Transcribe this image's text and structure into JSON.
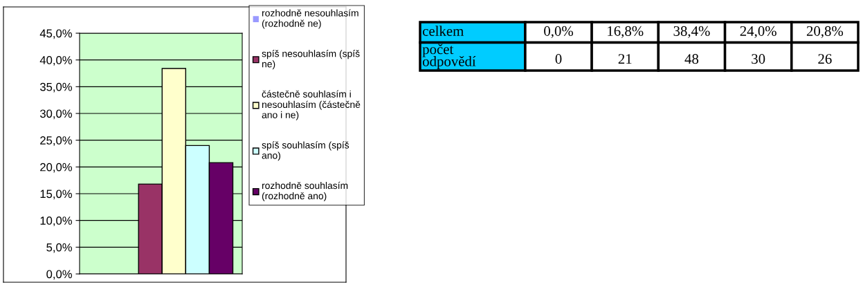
{
  "chart_data": [
    {
      "type": "bar",
      "categories": [
        null
      ],
      "series": [
        {
          "name": "rozhodně nesouhlasím (rozhodně ne)",
          "color": "#9999ff",
          "values": [
            0.0
          ]
        },
        {
          "name": "spíš nesouhlasím (spíš ne)",
          "color": "#993366",
          "values": [
            16.8
          ]
        },
        {
          "name": "částečně souhlasím i nesouhlasím (částečně ano i ne)",
          "color": "#ffffcc",
          "values": [
            38.4
          ]
        },
        {
          "name": "spíš souhlasím (spíš ano)",
          "color": "#ccffff",
          "values": [
            24.0
          ]
        },
        {
          "name": "rozhodně souhlasím (rozhodně ano)",
          "color": "#660066",
          "values": [
            20.8
          ]
        }
      ],
      "ylim": [
        0,
        45
      ],
      "yticks": [
        {
          "value": 0,
          "label": "0,0%"
        },
        {
          "value": 5,
          "label": "5,0%"
        },
        {
          "value": 10,
          "label": "10,0%"
        },
        {
          "value": 15,
          "label": "15,0%"
        },
        {
          "value": 20,
          "label": "20,0%"
        },
        {
          "value": 25,
          "label": "25,0%"
        },
        {
          "value": 30,
          "label": "30,0%"
        },
        {
          "value": 35,
          "label": "35,0%"
        },
        {
          "value": 40,
          "label": "40,0%"
        },
        {
          "value": 45,
          "label": "45,0%"
        }
      ],
      "grid": "y",
      "legend": "right"
    },
    {
      "type": "other",
      "annotations": [
        "celkem",
        "0,0%",
        "16,8%",
        "38,4%",
        "24,0%",
        "20,8%",
        "počet odpovědí",
        "0",
        "21",
        "48",
        "30",
        "26"
      ]
    }
  ]
}
